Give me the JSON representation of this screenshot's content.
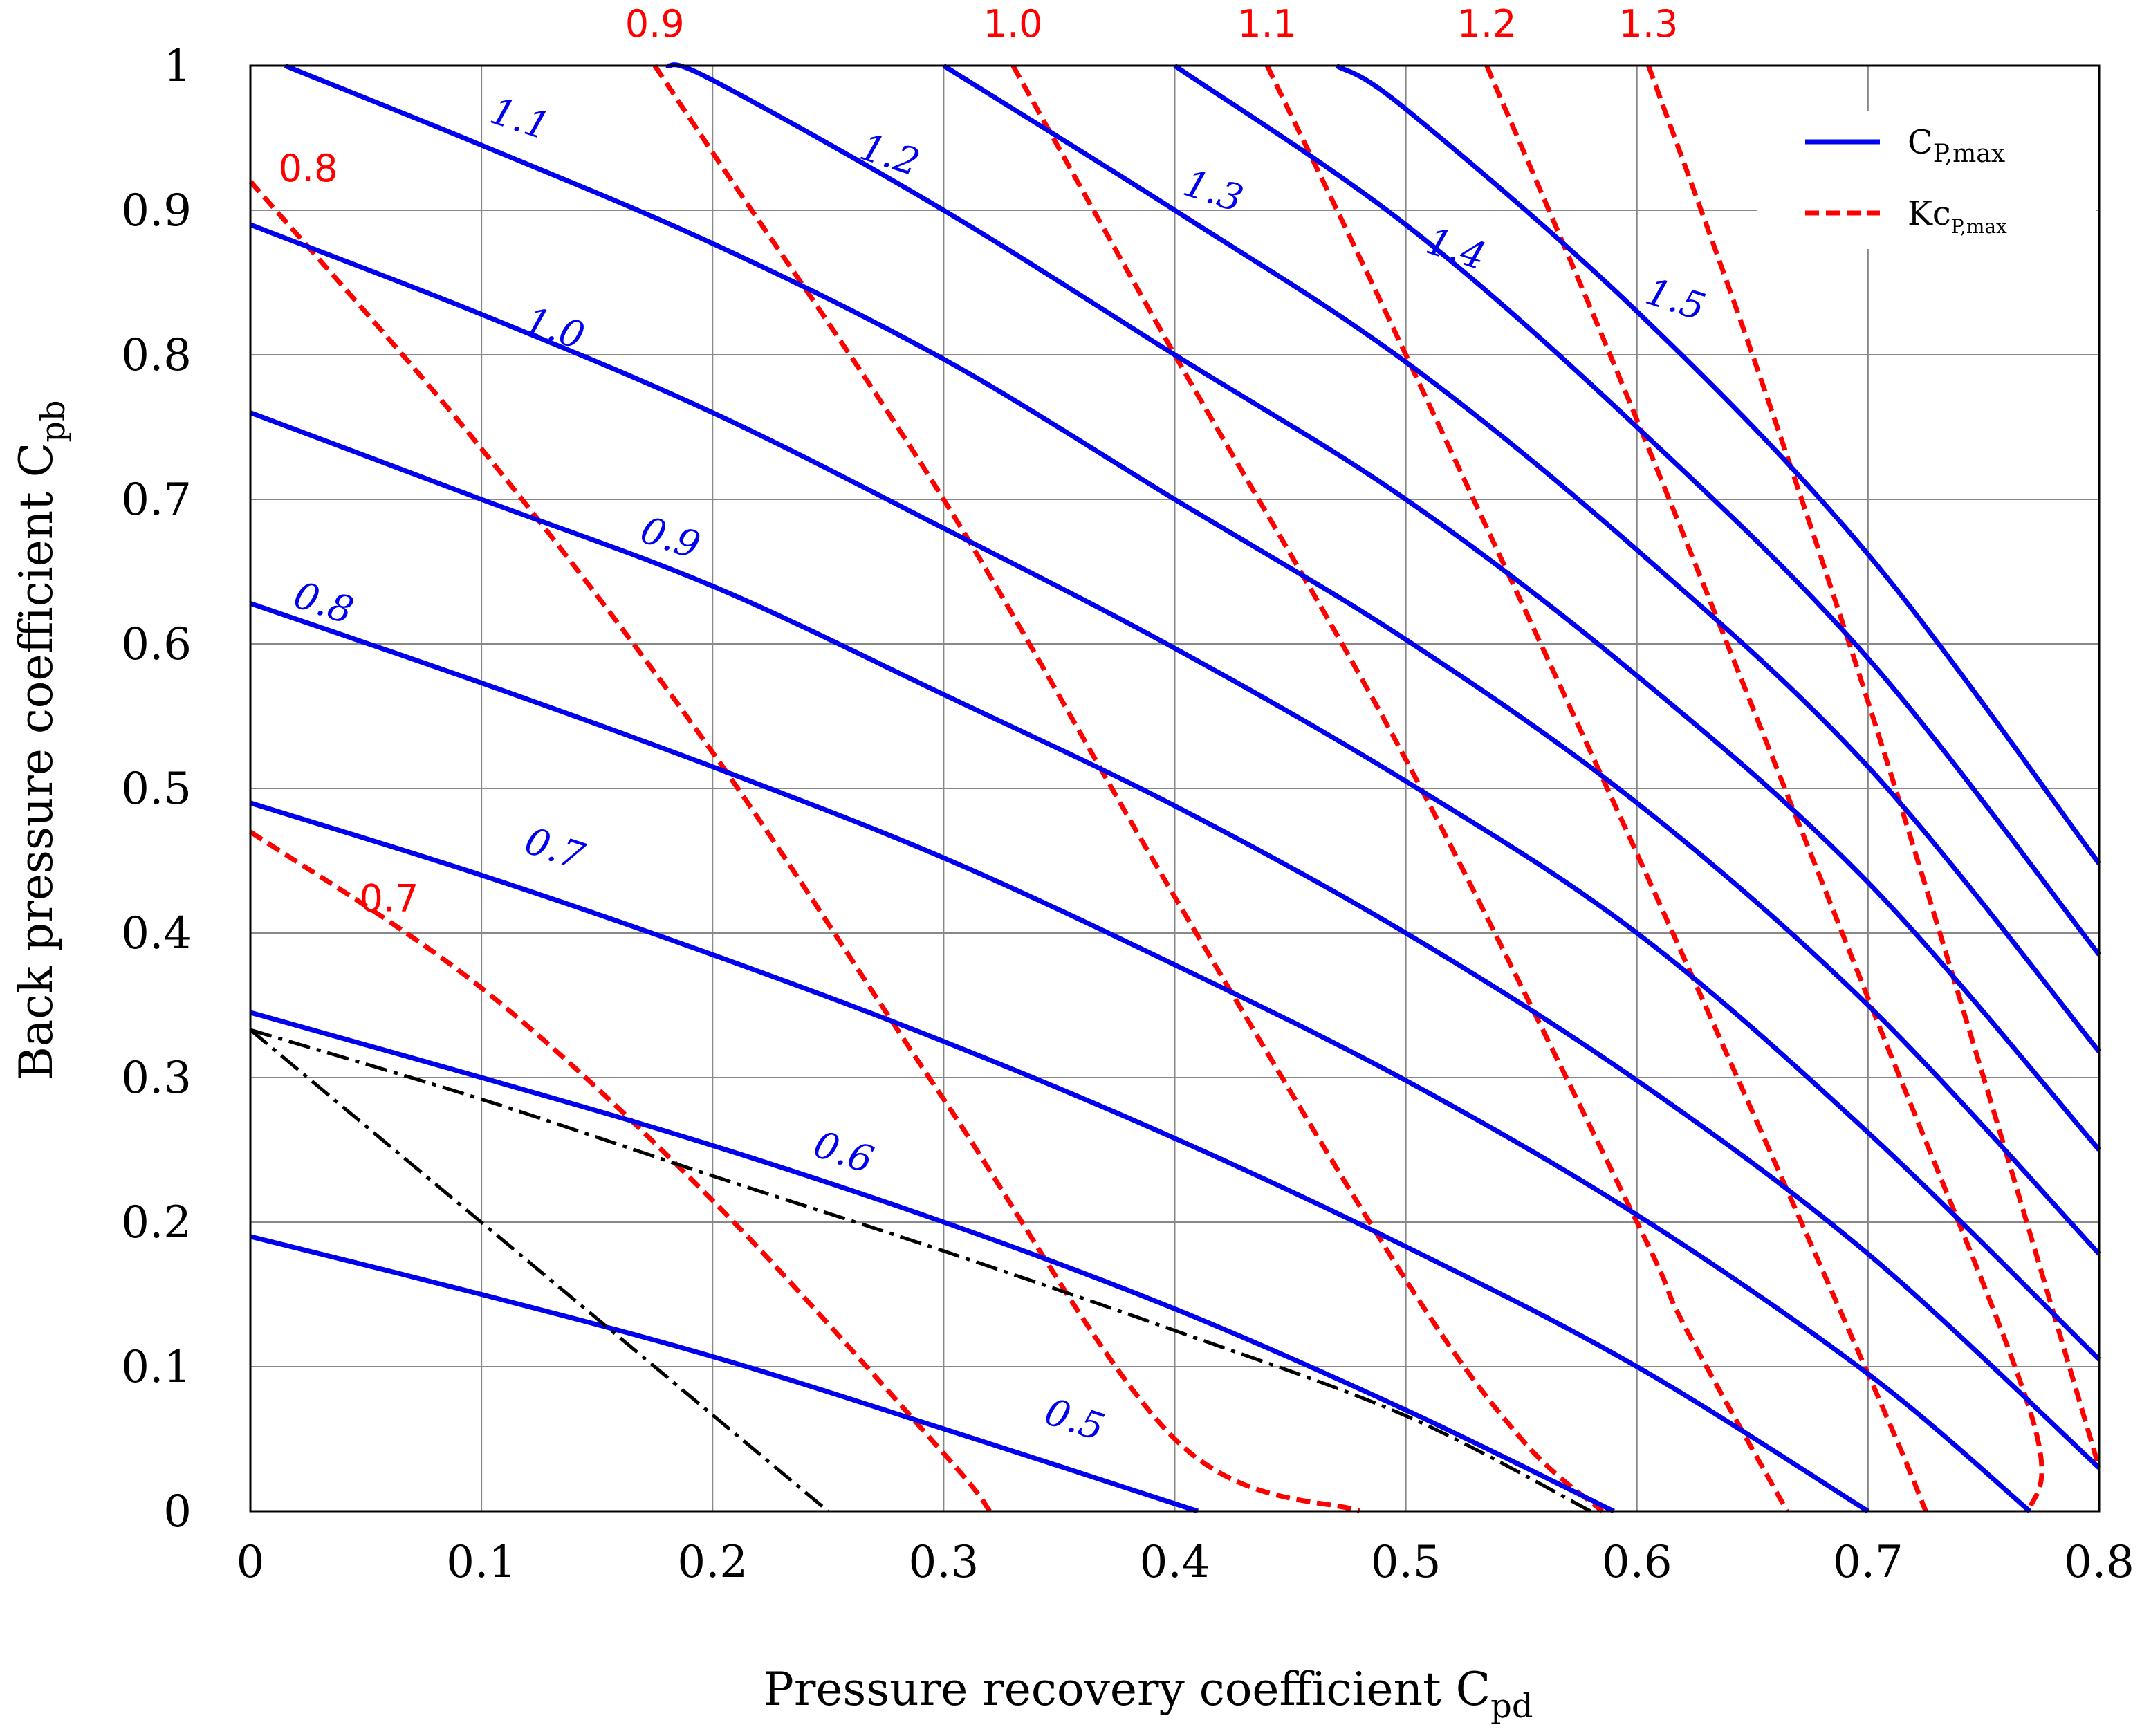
{
  "chart_data": {
    "type": "line",
    "xlabel": "Pressure recovery coefficient C",
    "xlabel_sub": "pd",
    "ylabel": "Back pressure coefficient C",
    "ylabel_sub": "pb",
    "xlim": [
      0,
      0.8
    ],
    "ylim": [
      0,
      1
    ],
    "grid": true,
    "legend_position": "top-right",
    "x_ticks": [
      "0",
      "0.1",
      "0.2",
      "0.3",
      "0.4",
      "0.5",
      "0.6",
      "0.7",
      "0.8"
    ],
    "y_ticks": [
      "0",
      "0.1",
      "0.2",
      "0.3",
      "0.4",
      "0.5",
      "0.6",
      "0.7",
      "0.8",
      "0.9",
      "1"
    ],
    "legend": [
      {
        "main": "C",
        "sub": "P,max",
        "style": "solid",
        "color": "#0000ee"
      },
      {
        "main": "Kc",
        "sub": "P,max",
        "style": "dashed",
        "color": "#ff0000"
      }
    ],
    "series_cp_max": [
      {
        "name": "0.5",
        "label": "0.5",
        "label_at": [
          0.355,
          0.055
        ],
        "points": [
          [
            0,
            0.19
          ],
          [
            0.1,
            0.15
          ],
          [
            0.2,
            0.107
          ],
          [
            0.3,
            0.057
          ],
          [
            0.41,
            0
          ]
        ]
      },
      {
        "name": "0.6",
        "label": "0.6",
        "label_at": [
          0.255,
          0.24
        ],
        "points": [
          [
            0,
            0.345
          ],
          [
            0.1,
            0.3
          ],
          [
            0.2,
            0.253
          ],
          [
            0.3,
            0.2
          ],
          [
            0.4,
            0.14
          ],
          [
            0.5,
            0.07
          ],
          [
            0.59,
            0
          ]
        ]
      },
      {
        "name": "0.7",
        "label": "0.7",
        "label_at": [
          0.13,
          0.45
        ],
        "points": [
          [
            0,
            0.49
          ],
          [
            0.1,
            0.44
          ],
          [
            0.2,
            0.385
          ],
          [
            0.3,
            0.325
          ],
          [
            0.4,
            0.258
          ],
          [
            0.5,
            0.183
          ],
          [
            0.6,
            0.1
          ],
          [
            0.7,
            0
          ]
        ]
      },
      {
        "name": "0.8",
        "label": "0.8",
        "label_at": [
          0.03,
          0.62
        ],
        "points": [
          [
            0,
            0.628
          ],
          [
            0.1,
            0.573
          ],
          [
            0.2,
            0.515
          ],
          [
            0.3,
            0.452
          ],
          [
            0.4,
            0.378
          ],
          [
            0.5,
            0.298
          ],
          [
            0.6,
            0.205
          ],
          [
            0.7,
            0.095
          ],
          [
            0.77,
            0
          ]
        ]
      },
      {
        "name": "0.9",
        "label": "0.9",
        "label_at": [
          0.18,
          0.665
        ],
        "points": [
          [
            0,
            0.76
          ],
          [
            0.1,
            0.7
          ],
          [
            0.2,
            0.64
          ],
          [
            0.3,
            0.565
          ],
          [
            0.4,
            0.488
          ],
          [
            0.5,
            0.4
          ],
          [
            0.6,
            0.298
          ],
          [
            0.7,
            0.178
          ],
          [
            0.8,
            0.03
          ]
        ]
      },
      {
        "name": "1.0",
        "label": "1.0",
        "label_at": [
          0.13,
          0.81
        ],
        "points": [
          [
            0,
            0.89
          ],
          [
            0.1,
            0.828
          ],
          [
            0.2,
            0.76
          ],
          [
            0.3,
            0.68
          ],
          [
            0.4,
            0.597
          ],
          [
            0.5,
            0.505
          ],
          [
            0.6,
            0.4
          ],
          [
            0.7,
            0.262
          ],
          [
            0.8,
            0.105
          ]
        ]
      },
      {
        "name": "1.1",
        "label": "1.1",
        "label_at": [
          0.115,
          0.955
        ],
        "points": [
          [
            0.015,
            1
          ],
          [
            0.1,
            0.945
          ],
          [
            0.2,
            0.877
          ],
          [
            0.3,
            0.797
          ],
          [
            0.4,
            0.7
          ],
          [
            0.5,
            0.603
          ],
          [
            0.6,
            0.49
          ],
          [
            0.7,
            0.35
          ],
          [
            0.8,
            0.178
          ]
        ]
      },
      {
        "name": "1.2",
        "label": "1.2",
        "label_at": [
          0.275,
          0.93
        ],
        "points": [
          [
            0.18,
            1
          ],
          [
            0.2,
            0.99
          ],
          [
            0.3,
            0.9
          ],
          [
            0.4,
            0.8
          ],
          [
            0.5,
            0.7
          ],
          [
            0.6,
            0.578
          ],
          [
            0.7,
            0.435
          ],
          [
            0.8,
            0.25
          ]
        ]
      },
      {
        "name": "1.3",
        "label": "1.3",
        "label_at": [
          0.415,
          0.905
        ],
        "points": [
          [
            0.3,
            1
          ],
          [
            0.4,
            0.9
          ],
          [
            0.5,
            0.795
          ],
          [
            0.6,
            0.665
          ],
          [
            0.7,
            0.515
          ],
          [
            0.8,
            0.318
          ]
        ]
      },
      {
        "name": "1.4",
        "label": "1.4",
        "label_at": [
          0.52,
          0.865
        ],
        "points": [
          [
            0.4,
            1
          ],
          [
            0.5,
            0.89
          ],
          [
            0.6,
            0.75
          ],
          [
            0.7,
            0.59
          ],
          [
            0.8,
            0.385
          ]
        ]
      },
      {
        "name": "1.5",
        "label": "1.5",
        "label_at": [
          0.615,
          0.83
        ],
        "points": [
          [
            0.47,
            1
          ],
          [
            0.5,
            0.97
          ],
          [
            0.6,
            0.83
          ],
          [
            0.7,
            0.662
          ],
          [
            0.8,
            0.448
          ]
        ]
      }
    ],
    "series_kcp_max": [
      {
        "name": "0.7",
        "label": "0.7",
        "label_at": [
          0.06,
          0.415
        ],
        "points": [
          [
            0,
            0.47
          ],
          [
            0.1,
            0.362
          ],
          [
            0.2,
            0.215
          ],
          [
            0.3,
            0.04
          ],
          [
            0.32,
            0
          ]
        ]
      },
      {
        "name": "0.8",
        "label": "0.8",
        "label_at": [
          0.025,
          0.92
        ],
        "points": [
          [
            0,
            0.92
          ],
          [
            0.1,
            0.735
          ],
          [
            0.2,
            0.525
          ],
          [
            0.3,
            0.285
          ],
          [
            0.4,
            0.05
          ],
          [
            0.48,
            0
          ]
        ]
      },
      {
        "name": "0.9",
        "label": "0.9",
        "label_at": [
          0.175,
          1.02
        ],
        "points": [
          [
            0.175,
            1
          ],
          [
            0.2,
            0.94
          ],
          [
            0.3,
            0.7
          ],
          [
            0.4,
            0.425
          ],
          [
            0.5,
            0.16
          ],
          [
            0.55,
            0.05
          ],
          [
            0.585,
            0
          ]
        ]
      },
      {
        "name": "1.0",
        "label": "1.0",
        "label_at": [
          0.33,
          1.02
        ],
        "points": [
          [
            0.33,
            1
          ],
          [
            0.4,
            0.8
          ],
          [
            0.5,
            0.52
          ],
          [
            0.6,
            0.2
          ],
          [
            0.62,
            0.13
          ],
          [
            0.665,
            0
          ]
        ]
      },
      {
        "name": "1.1",
        "label": "1.1",
        "label_at": [
          0.44,
          1.02
        ],
        "points": [
          [
            0.44,
            1
          ],
          [
            0.5,
            0.8
          ],
          [
            0.6,
            0.455
          ],
          [
            0.7,
            0.095
          ],
          [
            0.725,
            0
          ]
        ]
      },
      {
        "name": "1.2",
        "label": "1.2",
        "label_at": [
          0.535,
          1.02
        ],
        "points": [
          [
            0.535,
            1
          ],
          [
            0.6,
            0.755
          ],
          [
            0.7,
            0.355
          ],
          [
            0.77,
            0.07
          ],
          [
            0.77,
            0
          ]
        ]
      },
      {
        "name": "1.3",
        "label": "1.3",
        "label_at": [
          0.605,
          1.02
        ],
        "points": [
          [
            0.605,
            1
          ],
          [
            0.65,
            0.8
          ],
          [
            0.7,
            0.56
          ],
          [
            0.75,
            0.3
          ],
          [
            0.8,
            0.03
          ]
        ]
      }
    ],
    "reference_lines": [
      {
        "style": "dash-dot",
        "color": "#000000",
        "points": [
          [
            0,
            0.333
          ],
          [
            0.25,
            0
          ]
        ]
      },
      {
        "style": "dash-dot",
        "color": "#000000",
        "points": [
          [
            0,
            0.333
          ],
          [
            0.1,
            0.285
          ],
          [
            0.2,
            0.232
          ],
          [
            0.3,
            0.18
          ],
          [
            0.4,
            0.125
          ],
          [
            0.5,
            0.066
          ],
          [
            0.58,
            0
          ]
        ]
      }
    ]
  }
}
